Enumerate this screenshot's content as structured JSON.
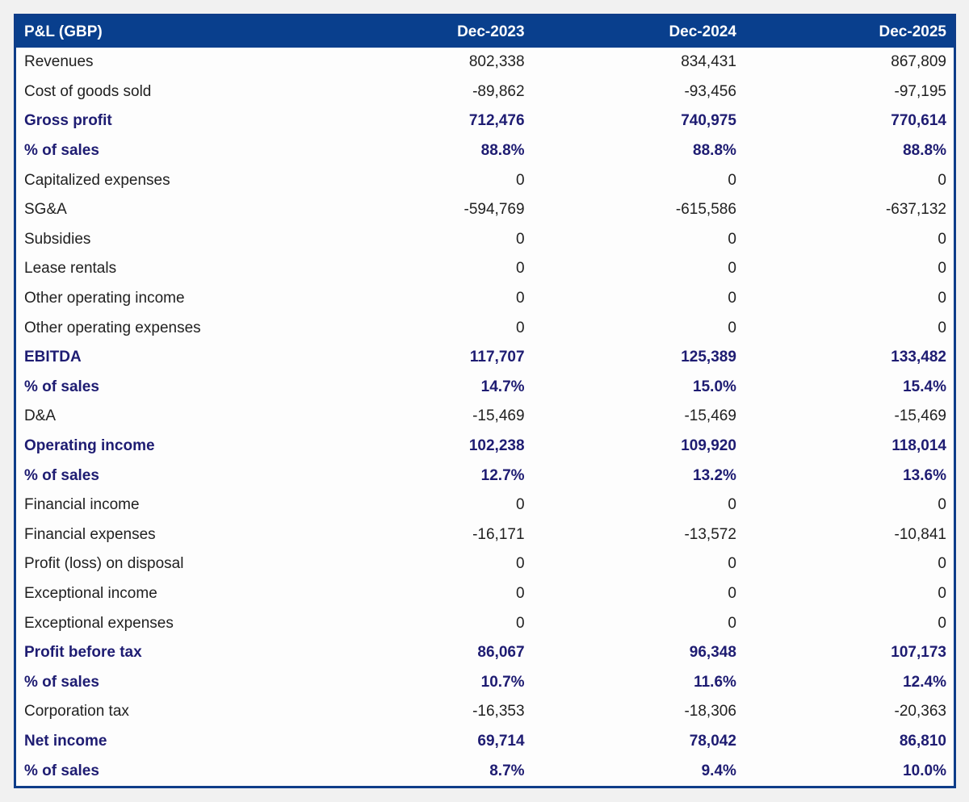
{
  "chart_data": {
    "type": "table",
    "title": "P&L (GBP)",
    "columns": [
      "P&L (GBP)",
      "Dec-2023",
      "Dec-2024",
      "Dec-2025"
    ],
    "rows": [
      {
        "label": "Revenues",
        "values": [
          "802,338",
          "834,431",
          "867,809"
        ],
        "bold": false
      },
      {
        "label": "Cost of goods sold",
        "values": [
          "-89,862",
          "-93,456",
          "-97,195"
        ],
        "bold": false
      },
      {
        "label": "Gross profit",
        "values": [
          "712,476",
          "740,975",
          "770,614"
        ],
        "bold": true
      },
      {
        "label": "% of sales",
        "values": [
          "88.8%",
          "88.8%",
          "88.8%"
        ],
        "bold": true
      },
      {
        "label": "Capitalized expenses",
        "values": [
          "0",
          "0",
          "0"
        ],
        "bold": false
      },
      {
        "label": "SG&A",
        "values": [
          "-594,769",
          "-615,586",
          "-637,132"
        ],
        "bold": false
      },
      {
        "label": "Subsidies",
        "values": [
          "0",
          "0",
          "0"
        ],
        "bold": false
      },
      {
        "label": "Lease rentals",
        "values": [
          "0",
          "0",
          "0"
        ],
        "bold": false
      },
      {
        "label": "Other operating income",
        "values": [
          "0",
          "0",
          "0"
        ],
        "bold": false
      },
      {
        "label": "Other operating expenses",
        "values": [
          "0",
          "0",
          "0"
        ],
        "bold": false
      },
      {
        "label": "EBITDA",
        "values": [
          "117,707",
          "125,389",
          "133,482"
        ],
        "bold": true
      },
      {
        "label": "% of sales",
        "values": [
          "14.7%",
          "15.0%",
          "15.4%"
        ],
        "bold": true
      },
      {
        "label": "D&A",
        "values": [
          "-15,469",
          "-15,469",
          "-15,469"
        ],
        "bold": false
      },
      {
        "label": "Operating income",
        "values": [
          "102,238",
          "109,920",
          "118,014"
        ],
        "bold": true
      },
      {
        "label": "% of sales",
        "values": [
          "12.7%",
          "13.2%",
          "13.6%"
        ],
        "bold": true
      },
      {
        "label": "Financial income",
        "values": [
          "0",
          "0",
          "0"
        ],
        "bold": false
      },
      {
        "label": "Financial expenses",
        "values": [
          "-16,171",
          "-13,572",
          "-10,841"
        ],
        "bold": false
      },
      {
        "label": "Profit (loss) on disposal",
        "values": [
          "0",
          "0",
          "0"
        ],
        "bold": false
      },
      {
        "label": "Exceptional income",
        "values": [
          "0",
          "0",
          "0"
        ],
        "bold": false
      },
      {
        "label": "Exceptional expenses",
        "values": [
          "0",
          "0",
          "0"
        ],
        "bold": false
      },
      {
        "label": "Profit before tax",
        "values": [
          "86,067",
          "96,348",
          "107,173"
        ],
        "bold": true
      },
      {
        "label": "% of sales",
        "values": [
          "10.7%",
          "11.6%",
          "12.4%"
        ],
        "bold": true
      },
      {
        "label": "Corporation tax",
        "values": [
          "-16,353",
          "-18,306",
          "-20,363"
        ],
        "bold": false
      },
      {
        "label": "Net income",
        "values": [
          "69,714",
          "78,042",
          "86,810"
        ],
        "bold": true
      },
      {
        "label": "% of sales",
        "values": [
          "8.7%",
          "9.4%",
          "10.0%"
        ],
        "bold": true
      }
    ],
    "layout": {
      "value_alignment": "right",
      "emphasis_rows_style": "bold navy",
      "grid": "no inner row lines"
    },
    "colors": {
      "header_bg": "#093F8D",
      "header_text": "#FFFFFF",
      "table_border": "#0E3D89",
      "emphasis_text": "#1E1C72",
      "regular_text": "#212121",
      "cell_bg": "#FDFDFD",
      "page_bg": "#F1F1F1"
    }
  }
}
